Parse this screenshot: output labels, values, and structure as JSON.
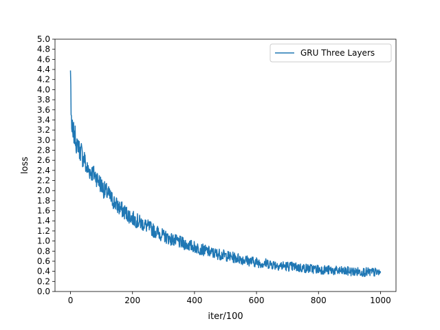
{
  "chart_data": {
    "type": "line",
    "title": "",
    "xlabel": "iter/100",
    "ylabel": "loss",
    "xlim": [
      -50,
      1050
    ],
    "ylim": [
      0.0,
      5.0
    ],
    "grid": false,
    "legend_position": "upper right",
    "x_ticks": [
      0,
      200,
      400,
      600,
      800,
      1000
    ],
    "x_tick_labels": [
      "0",
      "200",
      "400",
      "600",
      "800",
      "1000"
    ],
    "y_ticks": [
      0.0,
      0.2,
      0.4,
      0.6,
      0.8,
      1.0,
      1.2,
      1.4,
      1.6,
      1.8,
      2.0,
      2.2,
      2.4,
      2.6,
      2.8,
      3.0,
      3.2,
      3.4,
      3.6,
      3.8,
      4.0,
      4.2,
      4.4,
      4.6,
      4.8,
      5.0
    ],
    "y_tick_labels": [
      "0.0",
      "0.2",
      "0.4",
      "0.6",
      "0.8",
      "1.0",
      "1.2",
      "1.4",
      "1.6",
      "1.8",
      "2.0",
      "2.2",
      "2.4",
      "2.6",
      "2.8",
      "3.0",
      "3.2",
      "3.4",
      "3.6",
      "3.8",
      "4.0",
      "4.2",
      "4.4",
      "4.6",
      "4.8",
      "5.0"
    ],
    "series": [
      {
        "name": "GRU Three Layers",
        "color": "#1f77b4",
        "x": [
          0,
          1,
          2,
          3,
          4,
          5,
          6,
          8,
          10,
          12,
          15,
          18,
          20,
          25,
          30,
          35,
          40,
          45,
          50,
          60,
          70,
          80,
          90,
          100,
          110,
          120,
          130,
          140,
          150,
          160,
          170,
          180,
          190,
          200,
          210,
          220,
          230,
          240,
          250,
          260,
          270,
          280,
          290,
          300,
          320,
          340,
          360,
          380,
          400,
          420,
          440,
          460,
          480,
          500,
          520,
          540,
          560,
          580,
          600,
          620,
          640,
          660,
          680,
          700,
          720,
          740,
          760,
          780,
          800,
          820,
          840,
          860,
          880,
          900,
          920,
          940,
          960,
          980,
          1000
        ],
        "y": [
          4.38,
          4.1,
          3.5,
          3.45,
          3.3,
          3.15,
          3.22,
          3.05,
          3.2,
          3.0,
          3.1,
          2.95,
          2.85,
          2.95,
          2.75,
          2.8,
          2.6,
          2.65,
          2.45,
          2.4,
          2.35,
          2.3,
          2.2,
          2.1,
          2.0,
          1.95,
          1.85,
          1.78,
          1.7,
          1.65,
          1.6,
          1.55,
          1.5,
          1.45,
          1.42,
          1.38,
          1.35,
          1.32,
          1.28,
          1.25,
          1.2,
          1.18,
          1.14,
          1.1,
          1.05,
          1.0,
          0.96,
          0.92,
          0.88,
          0.84,
          0.8,
          0.76,
          0.74,
          0.71,
          0.68,
          0.66,
          0.63,
          0.6,
          0.58,
          0.56,
          0.55,
          0.53,
          0.51,
          0.5,
          0.49,
          0.47,
          0.46,
          0.45,
          0.44,
          0.43,
          0.42,
          0.41,
          0.4,
          0.4,
          0.39,
          0.39,
          0.38,
          0.38,
          0.37
        ]
      }
    ]
  }
}
